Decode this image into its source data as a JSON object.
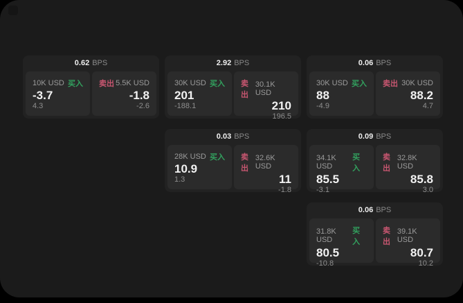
{
  "labels": {
    "bps": "BPS",
    "buy": "买入",
    "sell": "卖出"
  },
  "colors": {
    "background": "#1b1b1b",
    "card": "#222222",
    "panel": "#2b2b2b",
    "buy": "#32a05e",
    "sell": "#c75670"
  },
  "cards": [
    {
      "bps": "0.62",
      "buy": {
        "amount": "10K USD",
        "price": "-3.7",
        "delta": "4.3"
      },
      "sell": {
        "amount": "5.5K USD",
        "price": "-1.8",
        "delta": "-2.6"
      }
    },
    {
      "bps": "2.92",
      "buy": {
        "amount": "30K USD",
        "price": "201",
        "delta": "-188.1"
      },
      "sell": {
        "amount": "30.1K USD",
        "price": "210",
        "delta": "196.5"
      }
    },
    {
      "bps": "0.06",
      "buy": {
        "amount": "30K USD",
        "price": "88",
        "delta": "-4.9"
      },
      "sell": {
        "amount": "30K USD",
        "price": "88.2",
        "delta": "4.7"
      }
    },
    {
      "bps": "0.03",
      "buy": {
        "amount": "28K USD",
        "price": "10.9",
        "delta": "1.3"
      },
      "sell": {
        "amount": "32.6K USD",
        "price": "11",
        "delta": "-1.8"
      }
    },
    {
      "bps": "0.09",
      "buy": {
        "amount": "34.1K USD",
        "price": "85.5",
        "delta": "-3.1"
      },
      "sell": {
        "amount": "32.8K USD",
        "price": "85.8",
        "delta": "3.0"
      }
    },
    {
      "bps": "0.06",
      "buy": {
        "amount": "31.8K USD",
        "price": "80.5",
        "delta": "-10.8"
      },
      "sell": {
        "amount": "39.1K USD",
        "price": "80.7",
        "delta": "10.2"
      }
    }
  ]
}
